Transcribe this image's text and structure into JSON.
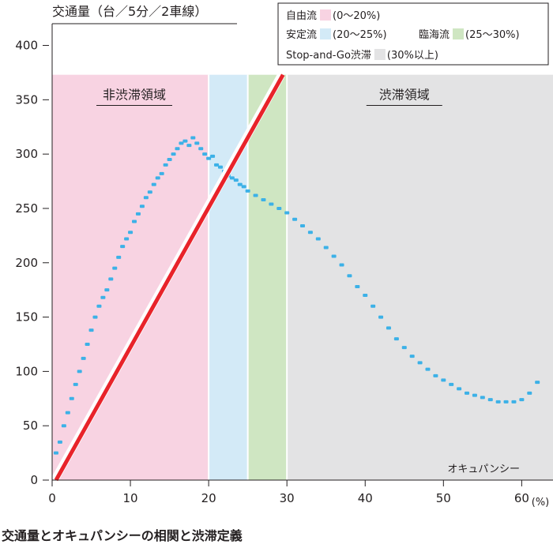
{
  "chart_data": {
    "type": "scatter",
    "title": "交通量とオキュパンシーの相関と渋滞定義",
    "ylabel": "交通量（台／5分／2車線）",
    "xlabel": "オキュパンシー",
    "xunit": "(%)",
    "xlim": [
      0,
      64
    ],
    "ylim": [
      0,
      420
    ],
    "xticks": [
      0,
      10,
      20,
      30,
      40,
      50,
      60
    ],
    "yticks": [
      0,
      50,
      100,
      150,
      200,
      250,
      300,
      350,
      400
    ],
    "grid": false,
    "legend_position": "top-right",
    "regions": [
      {
        "name": "自由流",
        "range": "(0〜20%)",
        "x0": 0,
        "x1": 20,
        "color": "#f8d3e2"
      },
      {
        "name": "安定流",
        "range": "(20〜25%)",
        "x0": 20,
        "x1": 25,
        "color": "#d3eaf7"
      },
      {
        "name": "臨海流",
        "range": "(25〜30%)",
        "x0": 25,
        "x1": 30,
        "color": "#cfe6c2"
      },
      {
        "name": "Stop-and-Go渋滞",
        "range": "(30%以上)",
        "x0": 30,
        "x1": 64,
        "color": "#e3e3e4"
      }
    ],
    "region_ymax": 373,
    "annotations": [
      {
        "text": "非渋滞領域",
        "x": 10.5,
        "y": 355
      },
      {
        "text": "渋滞領域",
        "x": 45,
        "y": 355
      }
    ],
    "threshold_line": {
      "x": [
        0.5,
        29.5
      ],
      "y": [
        0,
        373
      ],
      "color": "#e8232a"
    },
    "point_color": "#3cb1e7",
    "series": [
      {
        "x": [
          0.5,
          1,
          1.5,
          2,
          2.5,
          3,
          3.5,
          4,
          4.5,
          5,
          5.5,
          6,
          6.5,
          7,
          7.5,
          8,
          8.5,
          9,
          9.5,
          10,
          10.5,
          11,
          11.5,
          12,
          12.5,
          13,
          13.5,
          14,
          14.5,
          15,
          15.5,
          16,
          16.5,
          17,
          17.5,
          18,
          18.5,
          19,
          19.5,
          20,
          20.5,
          21,
          21.5,
          22,
          22.5,
          23,
          23.5,
          24,
          24.5,
          25,
          26,
          27,
          28,
          29,
          30,
          31,
          32,
          33,
          34,
          35,
          36,
          37,
          38,
          39,
          40,
          41,
          42,
          43,
          44,
          45,
          46,
          47,
          48,
          49,
          50,
          51,
          52,
          53,
          54,
          55,
          56,
          57,
          58,
          59,
          60,
          61,
          62
        ],
        "y": [
          25,
          35,
          50,
          62,
          75,
          88,
          100,
          112,
          125,
          138,
          150,
          160,
          168,
          175,
          185,
          195,
          205,
          215,
          222,
          228,
          238,
          245,
          252,
          260,
          265,
          272,
          278,
          282,
          290,
          295,
          300,
          305,
          310,
          312,
          308,
          315,
          310,
          305,
          300,
          296,
          298,
          290,
          288,
          284,
          280,
          278,
          276,
          272,
          270,
          266,
          262,
          258,
          254,
          250,
          246,
          240,
          234,
          228,
          222,
          214,
          206,
          198,
          188,
          178,
          170,
          160,
          150,
          140,
          130,
          122,
          114,
          108,
          102,
          96,
          92,
          88,
          84,
          80,
          78,
          76,
          74,
          72,
          72,
          72,
          74,
          80,
          90
        ]
      }
    ]
  }
}
